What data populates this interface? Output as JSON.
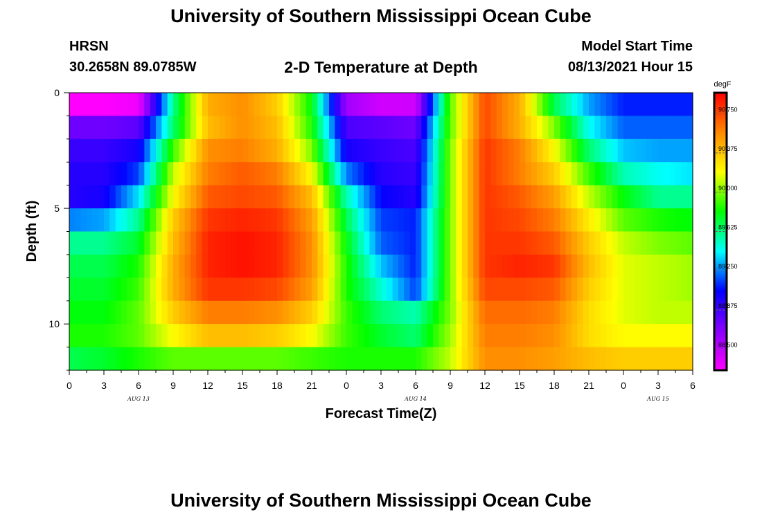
{
  "header": {
    "title": "University of Southern Mississippi Ocean Cube",
    "station": "HRSN",
    "coordinates": "30.2658N  89.0785W",
    "subtitle": "2-D Temperature at Depth",
    "start_label": "Model Start Time",
    "start_value": "08/13/2021 Hour 15"
  },
  "footer": {
    "title": "University of Southern Mississippi Ocean Cube"
  },
  "chart_data": {
    "type": "heatmap",
    "title": "2-D Temperature at Depth",
    "xlabel": "Forecast Time(Z)",
    "ylabel": "Depth (ft)",
    "x_tick_labels": [
      "0",
      "3",
      "6",
      "9",
      "12",
      "15",
      "18",
      "21",
      "0",
      "3",
      "6",
      "9",
      "12",
      "15",
      "18",
      "21",
      "0",
      "3",
      "6"
    ],
    "date_labels": [
      {
        "label": "AUG 13",
        "at_tick": 2
      },
      {
        "label": "AUG 14",
        "at_tick": 10
      },
      {
        "label": "AUG 15",
        "at_tick": 17
      }
    ],
    "x_range_hours": [
      0,
      54
    ],
    "y_tick_labels": [
      {
        "label": "0",
        "value": 0
      },
      {
        "label": "5",
        "value": 5
      },
      {
        "label": "10",
        "value": 10
      }
    ],
    "ylim": [
      0,
      12
    ],
    "y_inverted": true,
    "colorbar": {
      "unit": "degF",
      "ticks": [
        "88.500",
        "88.875",
        "89.250",
        "89.625",
        "90.000",
        "90.375",
        "90.750"
      ],
      "range": [
        88.3,
        90.95
      ],
      "colormap": [
        "#ff00ff",
        "#8800ff",
        "#0000ff",
        "#00ffff",
        "#00ff00",
        "#ffff00",
        "#ff8800",
        "#ff0000"
      ]
    },
    "depth_levels_ft": [
      0.5,
      1.5,
      2.5,
      3.5,
      4.5,
      5.5,
      6.5,
      7.5,
      8.5,
      9.5,
      10.5,
      11.5
    ],
    "time_hours": [
      0,
      3,
      6,
      9,
      12,
      15,
      18,
      21,
      24,
      27,
      30,
      33,
      36,
      39,
      42,
      45,
      48,
      51,
      54
    ],
    "values_degF": [
      [
        88.3,
        88.3,
        88.35,
        89.6,
        90.45,
        90.55,
        90.35,
        89.8,
        88.6,
        88.45,
        88.45,
        89.95,
        90.75,
        90.45,
        89.7,
        89.3,
        89.1,
        89.1,
        89.1
      ],
      [
        88.75,
        88.75,
        88.8,
        89.65,
        90.4,
        90.55,
        90.4,
        89.85,
        88.85,
        88.8,
        88.75,
        89.95,
        90.75,
        90.45,
        90.0,
        89.45,
        89.2,
        89.2,
        89.2
      ],
      [
        88.9,
        88.9,
        89.0,
        89.9,
        90.55,
        90.6,
        90.45,
        90.0,
        89.0,
        88.9,
        88.85,
        90.0,
        90.8,
        90.6,
        90.2,
        89.65,
        89.35,
        89.3,
        89.3
      ],
      [
        88.95,
        88.95,
        89.15,
        90.1,
        90.6,
        90.7,
        90.6,
        90.2,
        89.25,
        88.95,
        88.9,
        90.0,
        90.8,
        90.6,
        90.35,
        89.9,
        89.55,
        89.45,
        89.4
      ],
      [
        88.95,
        89.0,
        89.4,
        90.2,
        90.7,
        90.75,
        90.7,
        90.4,
        89.55,
        89.05,
        88.95,
        90.0,
        90.8,
        90.7,
        90.5,
        90.1,
        89.8,
        89.6,
        89.6
      ],
      [
        89.25,
        89.3,
        89.6,
        90.35,
        90.8,
        90.85,
        90.8,
        90.5,
        89.7,
        89.15,
        89.1,
        90.0,
        90.8,
        90.75,
        90.6,
        90.25,
        89.95,
        89.85,
        89.8
      ],
      [
        89.6,
        89.6,
        89.75,
        90.4,
        90.85,
        90.9,
        90.85,
        90.55,
        89.8,
        89.2,
        89.1,
        90.0,
        90.8,
        90.8,
        90.7,
        90.35,
        90.1,
        90.0,
        89.95
      ],
      [
        89.7,
        89.7,
        89.85,
        90.45,
        90.85,
        90.9,
        90.85,
        90.55,
        89.85,
        89.35,
        89.1,
        90.0,
        90.8,
        90.85,
        90.8,
        90.4,
        90.15,
        90.1,
        90.05
      ],
      [
        89.75,
        89.75,
        89.9,
        90.45,
        90.8,
        90.8,
        90.75,
        90.5,
        89.85,
        89.5,
        89.15,
        90.0,
        90.75,
        90.75,
        90.7,
        90.35,
        90.15,
        90.1,
        90.05
      ],
      [
        89.8,
        89.8,
        89.95,
        90.35,
        90.6,
        90.6,
        90.55,
        90.35,
        89.9,
        89.65,
        89.55,
        90.0,
        90.65,
        90.65,
        90.6,
        90.3,
        90.15,
        90.1,
        90.1
      ],
      [
        89.85,
        89.85,
        89.95,
        90.2,
        90.4,
        90.4,
        90.35,
        90.2,
        89.9,
        89.75,
        89.65,
        90.05,
        90.6,
        90.6,
        90.55,
        90.3,
        90.2,
        90.2,
        90.2
      ],
      [
        89.7,
        89.75,
        89.85,
        89.95,
        89.95,
        89.95,
        89.95,
        89.9,
        89.85,
        89.85,
        89.85,
        90.1,
        90.55,
        90.55,
        90.5,
        90.4,
        90.35,
        90.35,
        90.35
      ]
    ]
  }
}
